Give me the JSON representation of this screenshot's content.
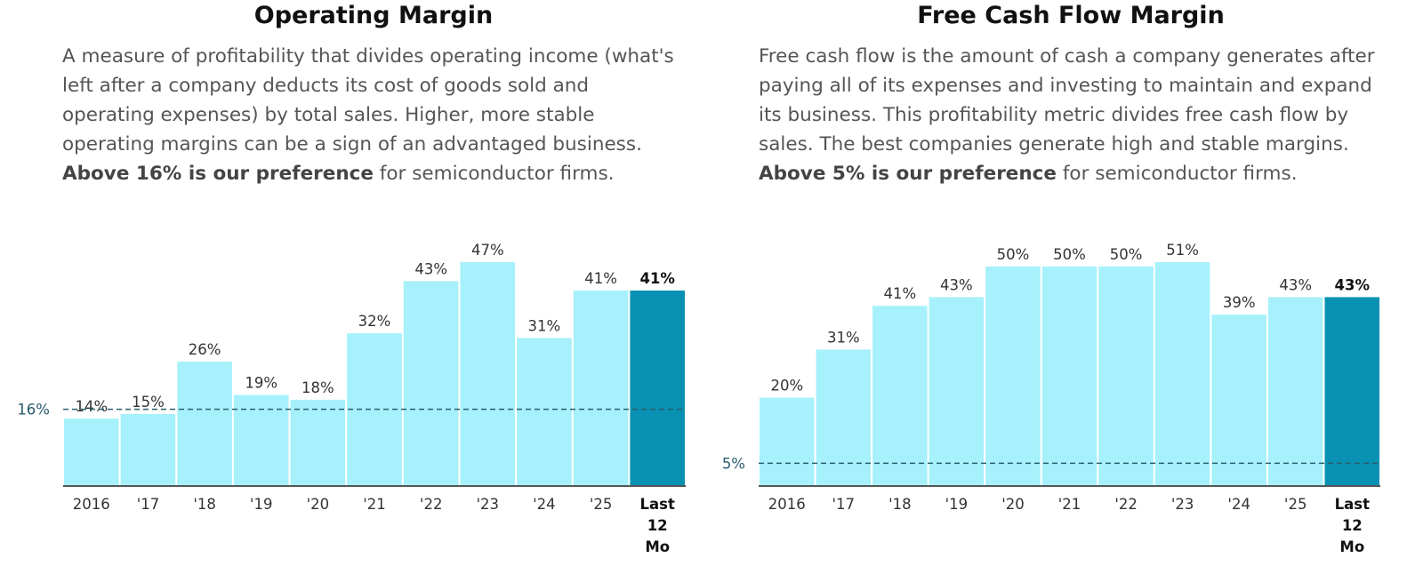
{
  "colors": {
    "bar": "#a6f1fb",
    "highlight": "#0891b2",
    "axis": "#555555",
    "threshold": "#2a5d6e",
    "label": "#333333",
    "label_highlight": "#111111"
  },
  "left": {
    "title": "Operating Margin",
    "desc": {
      "text": "A measure of profitability that divides operating income (what's left after a company deducts its cost of goods sold and operating expenses) by total sales. Higher, more stable operating margins can be a sign of an advantaged business.",
      "bold": "Above 16% is our preference",
      "tail": "for semiconductor firms."
    }
  },
  "right": {
    "title": "Free Cash Flow Margin",
    "desc": {
      "text": "Free cash flow is the amount of cash a company generates after paying all of its expenses and investing to maintain and expand its business. This profitability metric divides free cash flow by sales. The best companies generate high and stable margins.",
      "bold": "Above 5% is our preference",
      "tail": "for semiconductor firms."
    }
  },
  "chart_data": [
    {
      "type": "bar",
      "title": "Operating Margin",
      "categories": [
        "2016",
        "'17",
        "'18",
        "'19",
        "'20",
        "'21",
        "'22",
        "'23",
        "'24",
        "'25",
        "Last 12 Mo"
      ],
      "values": [
        14,
        15,
        26,
        19,
        18,
        32,
        43,
        47,
        31,
        41,
        41
      ],
      "value_labels": [
        "14%",
        "15%",
        "26%",
        "19%",
        "18%",
        "32%",
        "43%",
        "47%",
        "31%",
        "41%",
        "41%"
      ],
      "highlight_index": 10,
      "threshold": 16,
      "threshold_label": "16%",
      "ylim": [
        0,
        47
      ],
      "xlabel": "",
      "ylabel": ""
    },
    {
      "type": "bar",
      "title": "Free Cash Flow Margin",
      "categories": [
        "2016",
        "'17",
        "'18",
        "'19",
        "'20",
        "'21",
        "'22",
        "'23",
        "'24",
        "'25",
        "Last 12 Mo"
      ],
      "values": [
        20,
        31,
        41,
        43,
        50,
        50,
        50,
        51,
        39,
        43,
        43
      ],
      "value_labels": [
        "20%",
        "31%",
        "41%",
        "43%",
        "50%",
        "50%",
        "50%",
        "51%",
        "39%",
        "43%",
        "43%"
      ],
      "highlight_index": 10,
      "threshold": 5,
      "threshold_label": "5%",
      "ylim": [
        0,
        51
      ],
      "xlabel": "",
      "ylabel": ""
    }
  ]
}
